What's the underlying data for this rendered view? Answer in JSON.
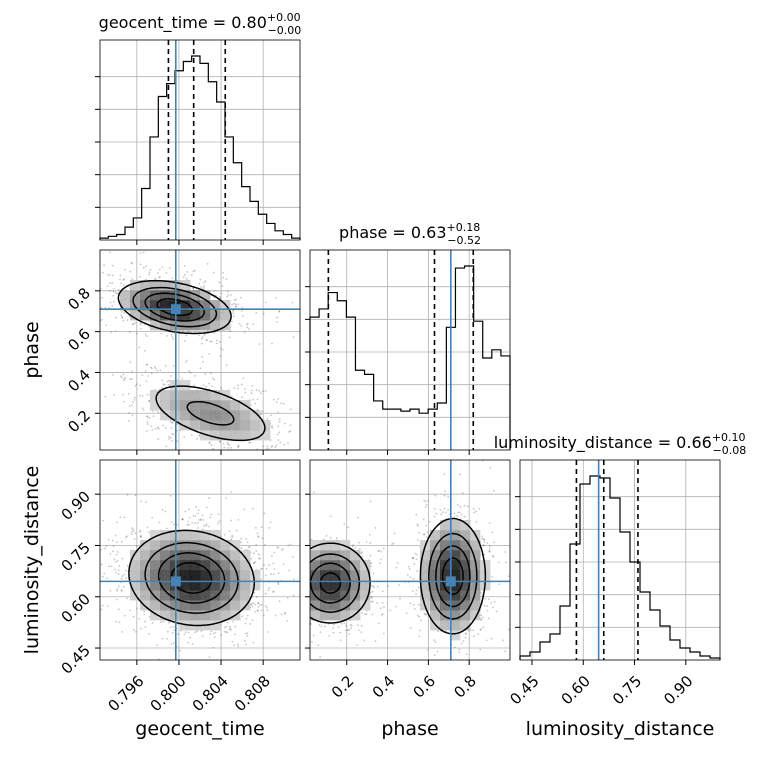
{
  "chart_data": {
    "type": "corner",
    "truth_color": "#4682b4",
    "parameters": [
      {
        "name": "geocent_time",
        "title_name": "geocent_time",
        "median": "0.80",
        "plus": "+0.00",
        "minus": "−0.00",
        "range": [
          0.7925,
          0.8115
        ],
        "truth": 0.7997,
        "quantiles": [
          0.799,
          0.8014,
          0.8044
        ],
        "ticks": [
          0.796,
          0.8,
          0.804,
          0.808
        ],
        "ticklabels": [
          "0.796",
          "0.800",
          "0.804",
          "0.808"
        ],
        "hist": [
          1,
          2,
          3,
          7,
          12,
          28,
          56,
          78,
          85,
          92,
          97,
          100,
          96,
          86,
          75,
          56,
          42,
          29,
          21,
          14,
          9,
          5,
          3,
          1
        ]
      },
      {
        "name": "phase",
        "title_name": "phase",
        "median": "0.63",
        "plus": "+0.18",
        "minus": "−0.52",
        "range": [
          0.02,
          1.0
        ],
        "truth": 0.71,
        "quantiles": [
          0.11,
          0.63,
          0.82
        ],
        "ticks": [
          0.2,
          0.4,
          0.6,
          0.8
        ],
        "ticklabels": [
          "0.2",
          "0.4",
          "0.6",
          "0.8"
        ],
        "hist": [
          65,
          69,
          77,
          73,
          65,
          39,
          37,
          24,
          20,
          20,
          19,
          20,
          18,
          20,
          23,
          60,
          89,
          90,
          63,
          45,
          49,
          46
        ]
      },
      {
        "name": "luminosity_distance",
        "title_name": "luminosity_distance",
        "median": "0.66",
        "plus": "+0.10",
        "minus": "−0.08",
        "range": [
          0.415,
          1.0
        ],
        "truth": 0.645,
        "quantiles": [
          0.58,
          0.66,
          0.76
        ],
        "ticks": [
          0.45,
          0.6,
          0.75,
          0.9
        ],
        "ticklabels": [
          "0.45",
          "0.60",
          "0.75",
          "0.90"
        ],
        "hist": [
          2,
          4,
          9,
          13,
          27,
          58,
          88,
          92,
          91,
          81,
          64,
          49,
          34,
          25,
          17,
          10,
          6,
          4,
          2,
          1
        ]
      }
    ],
    "pairs": [
      {
        "x": 0,
        "y": 1,
        "modes": [
          {
            "cx": 0.7996,
            "cy": 0.72,
            "sx": 0.0027,
            "sy": 0.065,
            "rho": -0.35,
            "w": 0.6
          },
          {
            "cx": 0.803,
            "cy": 0.2,
            "sx": 0.0035,
            "sy": 0.09,
            "rho": -0.55,
            "w": 0.4
          }
        ]
      },
      {
        "x": 0,
        "y": 2,
        "modes": [
          {
            "cx": 0.8012,
            "cy": 0.655,
            "sx": 0.003,
            "sy": 0.07,
            "rho": -0.1,
            "w": 1.0
          }
        ]
      },
      {
        "x": 1,
        "y": 2,
        "modes": [
          {
            "cx": 0.12,
            "cy": 0.64,
            "sx": 0.1,
            "sy": 0.06,
            "rho": 0.0,
            "w": 0.45
          },
          {
            "cx": 0.72,
            "cy": 0.66,
            "sx": 0.08,
            "sy": 0.085,
            "rho": 0.0,
            "w": 0.55
          }
        ]
      }
    ]
  }
}
